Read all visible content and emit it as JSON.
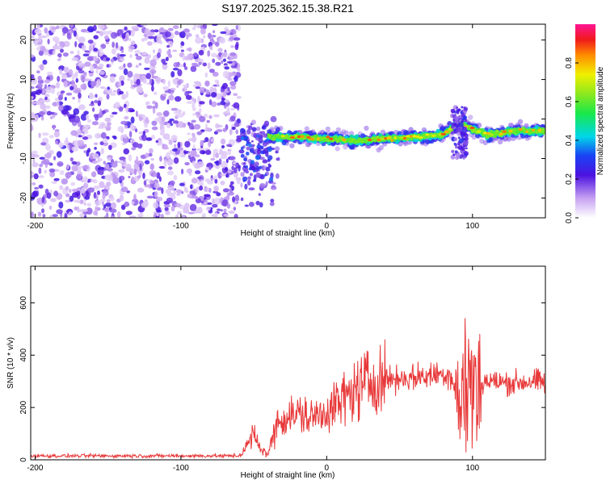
{
  "chart_data": [
    {
      "type": "heatmap",
      "title": "S197.2025.362.15.38.R21",
      "xlabel": "Height of straight line (km)",
      "ylabel": "Frequency (Hz)",
      "xlim": [
        -203,
        150
      ],
      "ylim": [
        -25,
        24
      ],
      "xticks": [
        -200,
        -100,
        0,
        100
      ],
      "yticks": [
        20,
        10,
        0,
        -10,
        -20
      ],
      "colorbar": {
        "label": "Normalized spectral amplitude",
        "range": [
          0,
          1
        ],
        "ticks": [
          "0.0",
          "0.2",
          "0.4",
          "0.6",
          "0.8"
        ],
        "tick_values": [
          0,
          0.2,
          0.4,
          0.6,
          0.8
        ]
      },
      "features": {
        "noise_region_x": [
          -203,
          -60
        ],
        "ridge": {
          "x": [
            -40,
            -20,
            0,
            20,
            40,
            60,
            80,
            90,
            110,
            130,
            150
          ],
          "frequency": [
            -4.5,
            -4.5,
            -5,
            -5.5,
            -5,
            -4.5,
            -4,
            -1,
            -4,
            -3,
            -3
          ],
          "peak_amplitude": 0.85
        }
      }
    },
    {
      "type": "line",
      "xlabel": "Height of straight line (km)",
      "ylabel": "SNR (10 * v/v)",
      "xlim": [
        -203,
        150
      ],
      "ylim": [
        0,
        740
      ],
      "xticks": [
        -200,
        -100,
        0,
        100
      ],
      "yticks": [
        0,
        200,
        400,
        600
      ],
      "series": [
        {
          "name": "SNR",
          "color": "#e8393a",
          "x": [
            -203,
            -150,
            -100,
            -60,
            -55,
            -50,
            -47,
            -40,
            -35,
            -30,
            -20,
            -10,
            0,
            10,
            20,
            30,
            40,
            50,
            60,
            70,
            80,
            85,
            90,
            92,
            94,
            95,
            96,
            98,
            100,
            102,
            105,
            110,
            120,
            130,
            140,
            150
          ],
          "y": [
            15,
            15,
            15,
            15,
            50,
            100,
            55,
            20,
            130,
            160,
            175,
            160,
            190,
            225,
            270,
            300,
            310,
            310,
            315,
            320,
            330,
            325,
            250,
            160,
            260,
            450,
            200,
            330,
            250,
            300,
            290,
            300,
            295,
            295,
            300,
            295
          ]
        }
      ]
    }
  ]
}
